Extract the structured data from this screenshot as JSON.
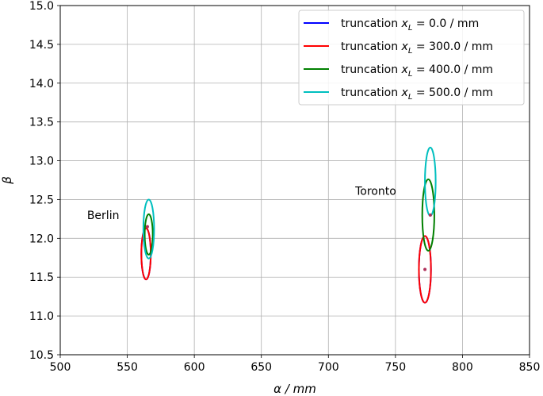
{
  "chart_data": {
    "type": "scatter",
    "xlabel": "α / mm",
    "ylabel": "β",
    "xlim": [
      500,
      850
    ],
    "ylim": [
      10.5,
      15.0
    ],
    "x_ticks": [
      500,
      550,
      600,
      650,
      700,
      750,
      800,
      850
    ],
    "y_ticks": [
      10.5,
      11.0,
      11.5,
      12.0,
      12.5,
      13.0,
      13.5,
      14.0,
      14.5,
      15.0
    ],
    "x_tick_labels": [
      "500",
      "550",
      "600",
      "650",
      "700",
      "750",
      "800",
      "850"
    ],
    "y_tick_labels": [
      "10.5",
      "11.0",
      "11.5",
      "12.0",
      "12.5",
      "13.0",
      "13.5",
      "14.0",
      "14.5",
      "15.0"
    ],
    "grid": true,
    "legend_position": "top-right",
    "series": [
      {
        "name": "truncation x_L = 0.0 / mm",
        "label_prefix": "truncation ",
        "label_var": "x",
        "label_sub": "L",
        "label_suffix": " = 0.0 / mm",
        "color": "#0000ff",
        "ellipses": [
          {
            "location": "Berlin",
            "cx": 564,
            "cy": 11.8,
            "rx": 3.5,
            "ry": 0.33
          },
          {
            "location": "Toronto",
            "cx": 772,
            "cy": 11.6,
            "rx": 4.5,
            "ry": 0.43
          }
        ]
      },
      {
        "name": "truncation x_L = 300.0 / mm",
        "label_prefix": "truncation ",
        "label_var": "x",
        "label_sub": "L",
        "label_suffix": " = 300.0 / mm",
        "color": "#ff0000",
        "ellipses": [
          {
            "location": "Berlin",
            "cx": 564,
            "cy": 11.8,
            "rx": 3.5,
            "ry": 0.33
          },
          {
            "location": "Toronto",
            "cx": 772,
            "cy": 11.6,
            "rx": 4.5,
            "ry": 0.43
          }
        ]
      },
      {
        "name": "truncation x_L = 400.0 / mm",
        "label_prefix": "truncation ",
        "label_var": "x",
        "label_sub": "L",
        "label_suffix": " = 400.0 / mm",
        "color": "#008000",
        "ellipses": [
          {
            "location": "Berlin",
            "cx": 566,
            "cy": 12.05,
            "rx": 3.0,
            "ry": 0.26
          },
          {
            "location": "Toronto",
            "cx": 774.5,
            "cy": 12.3,
            "rx": 4.5,
            "ry": 0.46
          }
        ]
      },
      {
        "name": "truncation x_L = 500.0 / mm",
        "label_prefix": "truncation ",
        "label_var": "x",
        "label_sub": "L",
        "label_suffix": " = 500.0 / mm",
        "color": "#00bfbf",
        "ellipses": [
          {
            "location": "Berlin",
            "cx": 566,
            "cy": 12.12,
            "rx": 4.0,
            "ry": 0.38
          },
          {
            "location": "Toronto",
            "cx": 776,
            "cy": 12.73,
            "rx": 4.0,
            "ry": 0.44
          }
        ]
      }
    ],
    "center_markers": [
      {
        "x": 565,
        "y": 12.15
      },
      {
        "x": 772,
        "y": 11.6
      },
      {
        "x": 776,
        "y": 12.3
      }
    ],
    "annotations": [
      {
        "text": "Berlin",
        "x": 520,
        "y": 12.25
      },
      {
        "text": "Toronto",
        "x": 720,
        "y": 12.56
      }
    ]
  }
}
